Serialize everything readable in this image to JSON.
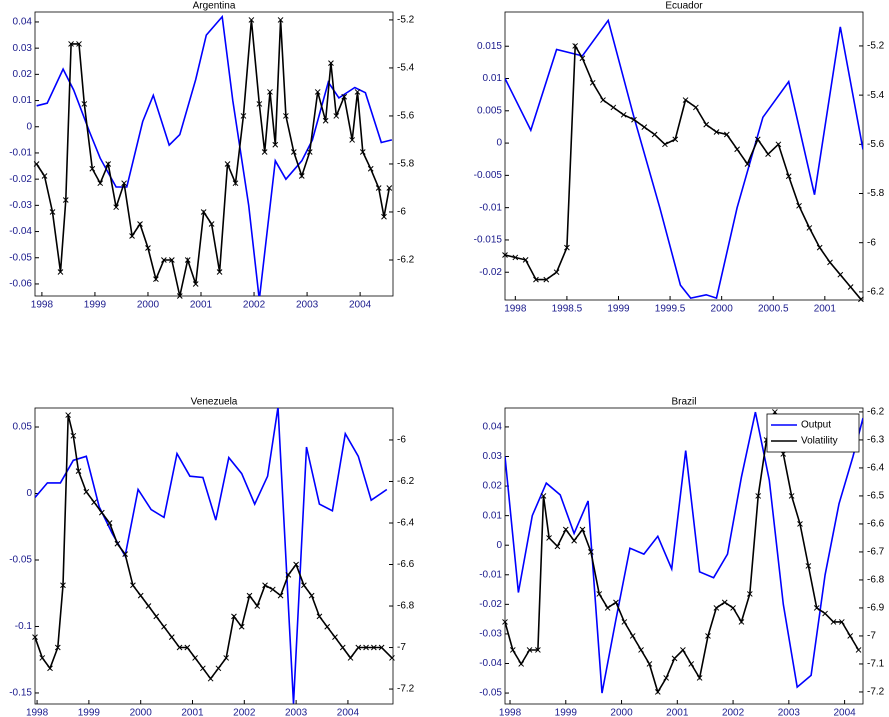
{
  "chart_data": [
    {
      "type": "line",
      "title": "Argentina",
      "xlim": [
        1997.87,
        2004.62
      ],
      "xticks": [
        1998,
        1999,
        2000,
        2001,
        2002,
        2003,
        2004
      ],
      "ylim": [
        -0.0646,
        0.0438
      ],
      "yticks": [
        0.04,
        0.03,
        0.02,
        0.01,
        0,
        -0.01,
        -0.02,
        -0.03,
        -0.04,
        -0.05,
        -0.06
      ],
      "y2lim": [
        -6.35,
        -5.167
      ],
      "y2ticks": [
        -5.2,
        -5.4,
        -5.6,
        -5.8,
        -6,
        -6.2
      ],
      "series": [
        {
          "color": "#0000ff",
          "x": [
            1997.9,
            1998.1,
            1998.4,
            1998.6,
            1998.9,
            1999.1,
            1999.4,
            1999.6,
            1999.9,
            2000.1,
            2000.4,
            2000.6,
            2000.9,
            2001.1,
            2001.4,
            2001.6,
            2001.9,
            2002.1,
            2002.4,
            2002.6,
            2002.9,
            2003.1,
            2003.4,
            2003.6,
            2003.9,
            2004.1,
            2004.4,
            2004.6
          ],
          "values": [
            0.008,
            0.009,
            0.022,
            0.014,
            -0.002,
            -0.012,
            -0.023,
            -0.023,
            0.002,
            0.012,
            -0.007,
            -0.003,
            0.018,
            0.035,
            0.042,
            0.01,
            -0.03,
            -0.066,
            -0.013,
            -0.02,
            -0.013,
            -0.005,
            0.017,
            0.011,
            0.015,
            0.013,
            -0.006,
            -0.005
          ]
        },
        {
          "color": "#000000",
          "axis": "y2",
          "marker": "x",
          "x": [
            1997.9,
            1998.05,
            1998.2,
            1998.35,
            1998.45,
            1998.55,
            1998.7,
            1998.8,
            1998.95,
            1999.1,
            1999.25,
            1999.4,
            1999.55,
            1999.7,
            1999.85,
            2000.0,
            2000.15,
            2000.3,
            2000.45,
            2000.6,
            2000.75,
            2000.9,
            2001.05,
            2001.2,
            2001.35,
            2001.5,
            2001.65,
            2001.8,
            2001.95,
            2002.1,
            2002.2,
            2002.3,
            2002.4,
            2002.5,
            2002.6,
            2002.75,
            2002.9,
            2003.05,
            2003.2,
            2003.35,
            2003.45,
            2003.55,
            2003.7,
            2003.85,
            2003.95,
            2004.05,
            2004.2,
            2004.35,
            2004.45,
            2004.55
          ],
          "values": [
            -5.8,
            -5.85,
            -6.0,
            -6.25,
            -5.95,
            -5.3,
            -5.3,
            -5.55,
            -5.82,
            -5.88,
            -5.8,
            -5.98,
            -5.88,
            -6.1,
            -6.05,
            -6.15,
            -6.28,
            -6.2,
            -6.2,
            -6.35,
            -6.2,
            -6.3,
            -6.0,
            -6.05,
            -6.25,
            -5.8,
            -5.88,
            -5.6,
            -5.2,
            -5.55,
            -5.75,
            -5.5,
            -5.72,
            -5.2,
            -5.6,
            -5.75,
            -5.85,
            -5.75,
            -5.5,
            -5.62,
            -5.38,
            -5.6,
            -5.52,
            -5.7,
            -5.5,
            -5.75,
            -5.82,
            -5.9,
            -6.02,
            -5.9
          ]
        }
      ]
    },
    {
      "type": "line",
      "title": "Ecuador",
      "xlim": [
        1997.9,
        2001.37
      ],
      "xticks": [
        1998,
        1998.5,
        1999,
        1999.5,
        2000,
        2000.5,
        2001
      ],
      "ylim": [
        -0.0243,
        0.0203
      ],
      "yticks": [
        0.015,
        0.01,
        0.005,
        0,
        -0.005,
        -0.01,
        -0.015,
        -0.02
      ],
      "y2lim": [
        -6.233,
        -5.062
      ],
      "y2ticks": [
        -5.2,
        -5.4,
        -5.6,
        -5.8,
        -6,
        -6.2
      ],
      "series": [
        {
          "color": "#0000ff",
          "x": [
            1997.9,
            1998.15,
            1998.4,
            1998.65,
            1998.9,
            1999.15,
            1999.4,
            1999.6,
            1999.7,
            1999.85,
            1999.95,
            2000.15,
            2000.4,
            2000.65,
            2000.9,
            2001.15,
            2001.37
          ],
          "values": [
            0.01,
            0.002,
            0.0145,
            0.0135,
            0.019,
            0.004,
            -0.01,
            -0.022,
            -0.024,
            -0.0235,
            -0.024,
            -0.01,
            0.004,
            0.0095,
            -0.008,
            0.018,
            -0.001
          ]
        },
        {
          "color": "#000000",
          "axis": "y2",
          "marker": "x",
          "x": [
            1997.9,
            1998.0,
            1998.1,
            1998.2,
            1998.3,
            1998.4,
            1998.5,
            1998.58,
            1998.65,
            1998.75,
            1998.85,
            1998.95,
            1999.05,
            1999.15,
            1999.25,
            1999.35,
            1999.45,
            1999.55,
            1999.65,
            1999.75,
            1999.85,
            1999.95,
            2000.05,
            2000.15,
            2000.25,
            2000.35,
            2000.45,
            2000.55,
            2000.65,
            2000.75,
            2000.85,
            2000.95,
            2001.05,
            2001.15,
            2001.25,
            2001.35
          ],
          "values": [
            -6.05,
            -6.06,
            -6.07,
            -6.15,
            -6.15,
            -6.12,
            -6.02,
            -5.2,
            -5.25,
            -5.35,
            -5.42,
            -5.45,
            -5.48,
            -5.5,
            -5.53,
            -5.56,
            -5.6,
            -5.58,
            -5.42,
            -5.45,
            -5.52,
            -5.55,
            -5.56,
            -5.62,
            -5.68,
            -5.58,
            -5.64,
            -5.6,
            -5.73,
            -5.85,
            -5.94,
            -6.02,
            -6.08,
            -6.13,
            -6.18,
            -6.23
          ]
        }
      ]
    },
    {
      "type": "line",
      "title": "Venezuela",
      "xlim": [
        1997.96,
        2004.87
      ],
      "xticks": [
        1998,
        1999,
        2000,
        2001,
        2002,
        2003,
        2004
      ],
      "ylim": [
        -0.1583,
        0.0643
      ],
      "yticks": [
        0.05,
        0,
        -0.05,
        -0.1,
        -0.15
      ],
      "y2lim": [
        -7.272,
        -5.846
      ],
      "y2ticks": [
        -6,
        -6.2,
        -6.4,
        -6.6,
        -6.8,
        -7,
        -7.2
      ],
      "series": [
        {
          "color": "#0000ff",
          "x": [
            1997.96,
            1998.2,
            1998.45,
            1998.7,
            1998.95,
            1999.2,
            1999.45,
            1999.7,
            1999.95,
            2000.2,
            2000.45,
            2000.7,
            2000.95,
            2001.2,
            2001.45,
            2001.7,
            2001.95,
            2002.2,
            2002.45,
            2002.65,
            2002.95,
            2003.2,
            2003.45,
            2003.7,
            2003.95,
            2004.2,
            2004.45,
            2004.75
          ],
          "values": [
            -0.003,
            0.008,
            0.008,
            0.025,
            0.028,
            -0.01,
            -0.03,
            -0.047,
            0.003,
            -0.012,
            -0.018,
            0.03,
            0.013,
            0.012,
            -0.02,
            0.027,
            0.015,
            -0.008,
            0.013,
            0.065,
            -0.158,
            0.035,
            -0.008,
            -0.013,
            0.045,
            0.028,
            -0.005,
            0.003
          ]
        },
        {
          "color": "#000000",
          "axis": "y2",
          "marker": "x",
          "x": [
            1997.96,
            1998.1,
            1998.25,
            1998.4,
            1998.5,
            1998.6,
            1998.7,
            1998.8,
            1998.95,
            1999.1,
            1999.25,
            1999.4,
            1999.55,
            1999.7,
            1999.85,
            2000.0,
            2000.15,
            2000.3,
            2000.45,
            2000.6,
            2000.75,
            2000.9,
            2001.05,
            2001.2,
            2001.35,
            2001.5,
            2001.65,
            2001.8,
            2001.95,
            2002.1,
            2002.25,
            2002.4,
            2002.55,
            2002.7,
            2002.85,
            2003.0,
            2003.15,
            2003.3,
            2003.45,
            2003.6,
            2003.75,
            2003.9,
            2004.05,
            2004.2,
            2004.35,
            2004.5,
            2004.65,
            2004.85
          ],
          "values": [
            -6.95,
            -7.05,
            -7.1,
            -7.0,
            -6.7,
            -5.88,
            -5.98,
            -6.15,
            -6.25,
            -6.3,
            -6.35,
            -6.4,
            -6.5,
            -6.55,
            -6.7,
            -6.75,
            -6.8,
            -6.85,
            -6.9,
            -6.95,
            -7.0,
            -7.0,
            -7.05,
            -7.1,
            -7.15,
            -7.1,
            -7.05,
            -6.85,
            -6.9,
            -6.75,
            -6.8,
            -6.7,
            -6.72,
            -6.75,
            -6.65,
            -6.6,
            -6.7,
            -6.75,
            -6.85,
            -6.9,
            -6.95,
            -7.0,
            -7.05,
            -7.0,
            -7.0,
            -7.0,
            -7.0,
            -7.05
          ]
        }
      ]
    },
    {
      "type": "line",
      "title": "Brazil",
      "legend": "upper right",
      "xlim": [
        1997.91,
        2004.33
      ],
      "xticks": [
        1998,
        1999,
        2000,
        2001,
        2002,
        2003,
        2004
      ],
      "ylim": [
        -0.0537,
        0.0464
      ],
      "yticks": [
        0.04,
        0.03,
        0.02,
        0.01,
        0,
        -0.01,
        -0.02,
        -0.03,
        -0.04,
        -0.05
      ],
      "y2lim": [
        -7.243,
        -6.186
      ],
      "y2ticks": [
        -6.2,
        -6.3,
        -6.4,
        -6.5,
        -6.6,
        -6.7,
        -6.8,
        -6.9,
        -7,
        -7.1,
        -7.2
      ],
      "series": [
        {
          "name": "Output",
          "color": "#0000ff",
          "x": [
            1997.91,
            1998.15,
            1998.4,
            1998.65,
            1998.9,
            1999.15,
            1999.4,
            1999.65,
            1999.9,
            2000.15,
            2000.4,
            2000.65,
            2000.9,
            2001.15,
            2001.4,
            2001.65,
            2001.9,
            2002.15,
            2002.4,
            2002.65,
            2002.9,
            2003.15,
            2003.4,
            2003.65,
            2003.9,
            2004.15,
            2004.33
          ],
          "values": [
            0.03,
            -0.016,
            0.01,
            0.021,
            0.017,
            0.004,
            0.015,
            -0.05,
            -0.025,
            -0.001,
            -0.003,
            0.003,
            -0.008,
            0.032,
            -0.009,
            -0.011,
            -0.003,
            0.023,
            0.045,
            0.022,
            -0.02,
            -0.048,
            -0.044,
            -0.01,
            0.014,
            0.03,
            0.043
          ]
        },
        {
          "name": "Volatility",
          "color": "#000000",
          "axis": "y2",
          "marker": "x",
          "x": [
            1997.91,
            1998.05,
            1998.2,
            1998.35,
            1998.5,
            1998.6,
            1998.7,
            1998.85,
            1999.0,
            1999.15,
            1999.3,
            1999.45,
            1999.6,
            1999.75,
            1999.9,
            2000.05,
            2000.2,
            2000.35,
            2000.5,
            2000.65,
            2000.8,
            2000.95,
            2001.1,
            2001.25,
            2001.4,
            2001.55,
            2001.7,
            2001.85,
            2002.0,
            2002.15,
            2002.3,
            2002.45,
            2002.6,
            2002.75,
            2002.9,
            2003.05,
            2003.2,
            2003.35,
            2003.5,
            2003.65,
            2003.8,
            2003.95,
            2004.1,
            2004.25
          ],
          "values": [
            -6.95,
            -7.05,
            -7.1,
            -7.05,
            -7.05,
            -6.5,
            -6.65,
            -6.68,
            -6.62,
            -6.66,
            -6.62,
            -6.7,
            -6.85,
            -6.9,
            -6.88,
            -6.95,
            -7.0,
            -7.05,
            -7.1,
            -7.2,
            -7.15,
            -7.08,
            -7.05,
            -7.1,
            -7.15,
            -7.0,
            -6.9,
            -6.88,
            -6.9,
            -6.95,
            -6.85,
            -6.5,
            -6.3,
            -6.2,
            -6.35,
            -6.5,
            -6.6,
            -6.75,
            -6.9,
            -6.92,
            -6.95,
            -6.95,
            -7.0,
            -7.05
          ]
        }
      ]
    }
  ]
}
